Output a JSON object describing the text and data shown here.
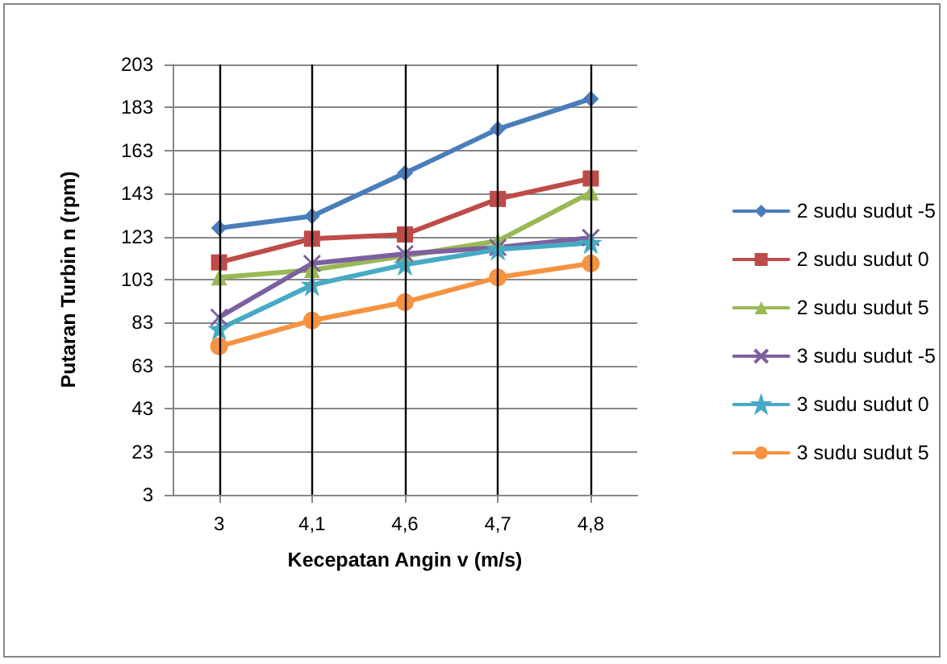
{
  "chart_data": {
    "type": "line",
    "xlabel": "Kecepatan Angin v (m/s)",
    "ylabel": "Putaran Turbin n (rpm)",
    "categories": [
      "3",
      "4,1",
      "4,6",
      "4,7",
      "4,8"
    ],
    "ylim": [
      3,
      203
    ],
    "yticks": [
      3,
      23,
      43,
      63,
      83,
      103,
      123,
      143,
      163,
      183,
      203
    ],
    "grid": true,
    "legend": "right",
    "line_style": "solid",
    "series": [
      {
        "name": "2 sudu sudut -5",
        "color": "#4a7ebb",
        "marker": "diamond",
        "values": [
          127,
          132.5,
          152.5,
          173,
          187
        ]
      },
      {
        "name": "2 sudu sudut 0",
        "color": "#be4b48",
        "marker": "square",
        "values": [
          111,
          122,
          124,
          140.5,
          150
        ]
      },
      {
        "name": "2 sudu sudut 5",
        "color": "#98b954",
        "marker": "triangle",
        "values": [
          104,
          107.5,
          114,
          121,
          143.5
        ]
      },
      {
        "name": "3 sudu sudut -5",
        "color": "#7d60a0",
        "marker": "cross",
        "values": [
          85.5,
          110.5,
          115,
          118,
          122.5
        ]
      },
      {
        "name": "3 sudu sudut 0",
        "color": "#46aac5",
        "marker": "star",
        "values": [
          80,
          100.5,
          110,
          117,
          120
        ]
      },
      {
        "name": "3 sudu sudut 5",
        "color": "#f69240",
        "marker": "circle",
        "values": [
          72,
          84,
          92.5,
          104,
          110.5
        ]
      }
    ]
  }
}
